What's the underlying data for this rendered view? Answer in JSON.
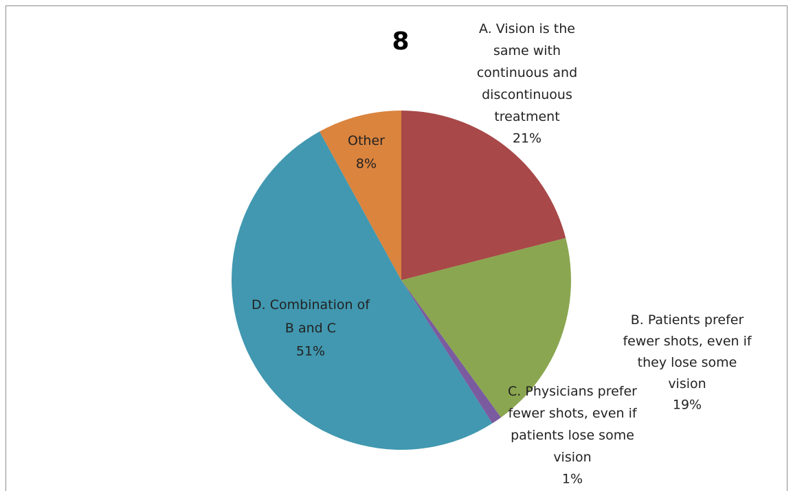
{
  "chart_data": {
    "type": "pie",
    "title": "8",
    "categories": [
      "A. Vision is the same with continuous and discontinuous treatment",
      "B. Patients prefer fewer shots, even if they lose some vision",
      "C. Physicians prefer fewer shots, even if patients lose some vision",
      "D. Combination of B and C",
      "Other"
    ],
    "values": [
      21,
      19,
      1,
      51,
      8
    ],
    "value_labels": [
      "21%",
      "19%",
      "1%",
      "51%",
      "8%"
    ],
    "colors": [
      "#a84848",
      "#8aa650",
      "#7b5ba0",
      "#4198b0",
      "#da843e"
    ]
  }
}
